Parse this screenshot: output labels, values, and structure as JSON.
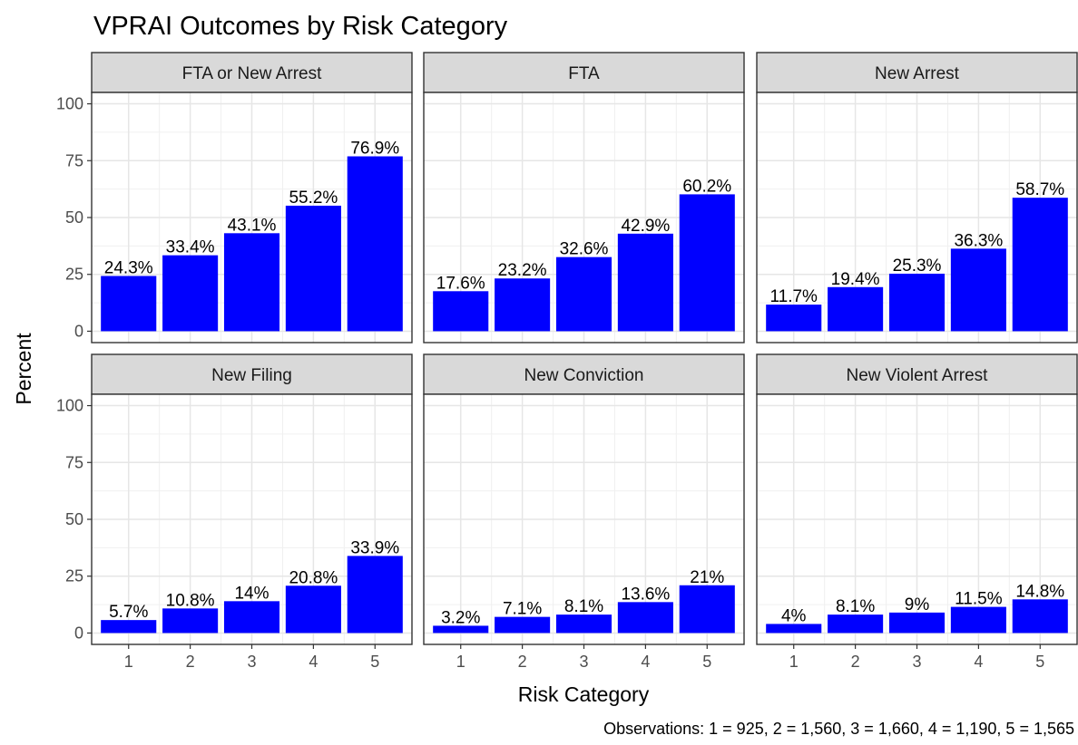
{
  "chart_data": {
    "type": "bar",
    "title": "VPRAI Outcomes by Risk Category",
    "xlabel": "Risk Category",
    "ylabel": "Percent",
    "caption": "Observations: 1 = 925, 2 = 1,560, 3 = 1,660, 4 = 1,190, 5 = 1,565",
    "categories": [
      "1",
      "2",
      "3",
      "4",
      "5"
    ],
    "ylim": [
      0,
      100
    ],
    "yticks": [
      0,
      25,
      50,
      75,
      100
    ],
    "grid": true,
    "bar_color": "#0000FF",
    "strip_fill": "#D9D9D9",
    "panels": [
      {
        "name": "FTA or New Arrest",
        "values": [
          24.3,
          33.4,
          43.1,
          55.2,
          76.9
        ],
        "labels": [
          "24.3%",
          "33.4%",
          "43.1%",
          "55.2%",
          "76.9%"
        ]
      },
      {
        "name": "FTA",
        "values": [
          17.6,
          23.2,
          32.6,
          42.9,
          60.2
        ],
        "labels": [
          "17.6%",
          "23.2%",
          "32.6%",
          "42.9%",
          "60.2%"
        ]
      },
      {
        "name": "New Arrest",
        "values": [
          11.7,
          19.4,
          25.3,
          36.3,
          58.7
        ],
        "labels": [
          "11.7%",
          "19.4%",
          "25.3%",
          "36.3%",
          "58.7%"
        ]
      },
      {
        "name": "New Filing",
        "values": [
          5.7,
          10.8,
          14,
          20.8,
          33.9
        ],
        "labels": [
          "5.7%",
          "10.8%",
          "14%",
          "20.8%",
          "33.9%"
        ]
      },
      {
        "name": "New Conviction",
        "values": [
          3.2,
          7.1,
          8.1,
          13.6,
          21
        ],
        "labels": [
          "3.2%",
          "7.1%",
          "8.1%",
          "13.6%",
          "21%"
        ]
      },
      {
        "name": "New Violent Arrest",
        "values": [
          4,
          8.1,
          9,
          11.5,
          14.8
        ],
        "labels": [
          "4%",
          "8.1%",
          "9%",
          "11.5%",
          "14.8%"
        ]
      }
    ]
  }
}
